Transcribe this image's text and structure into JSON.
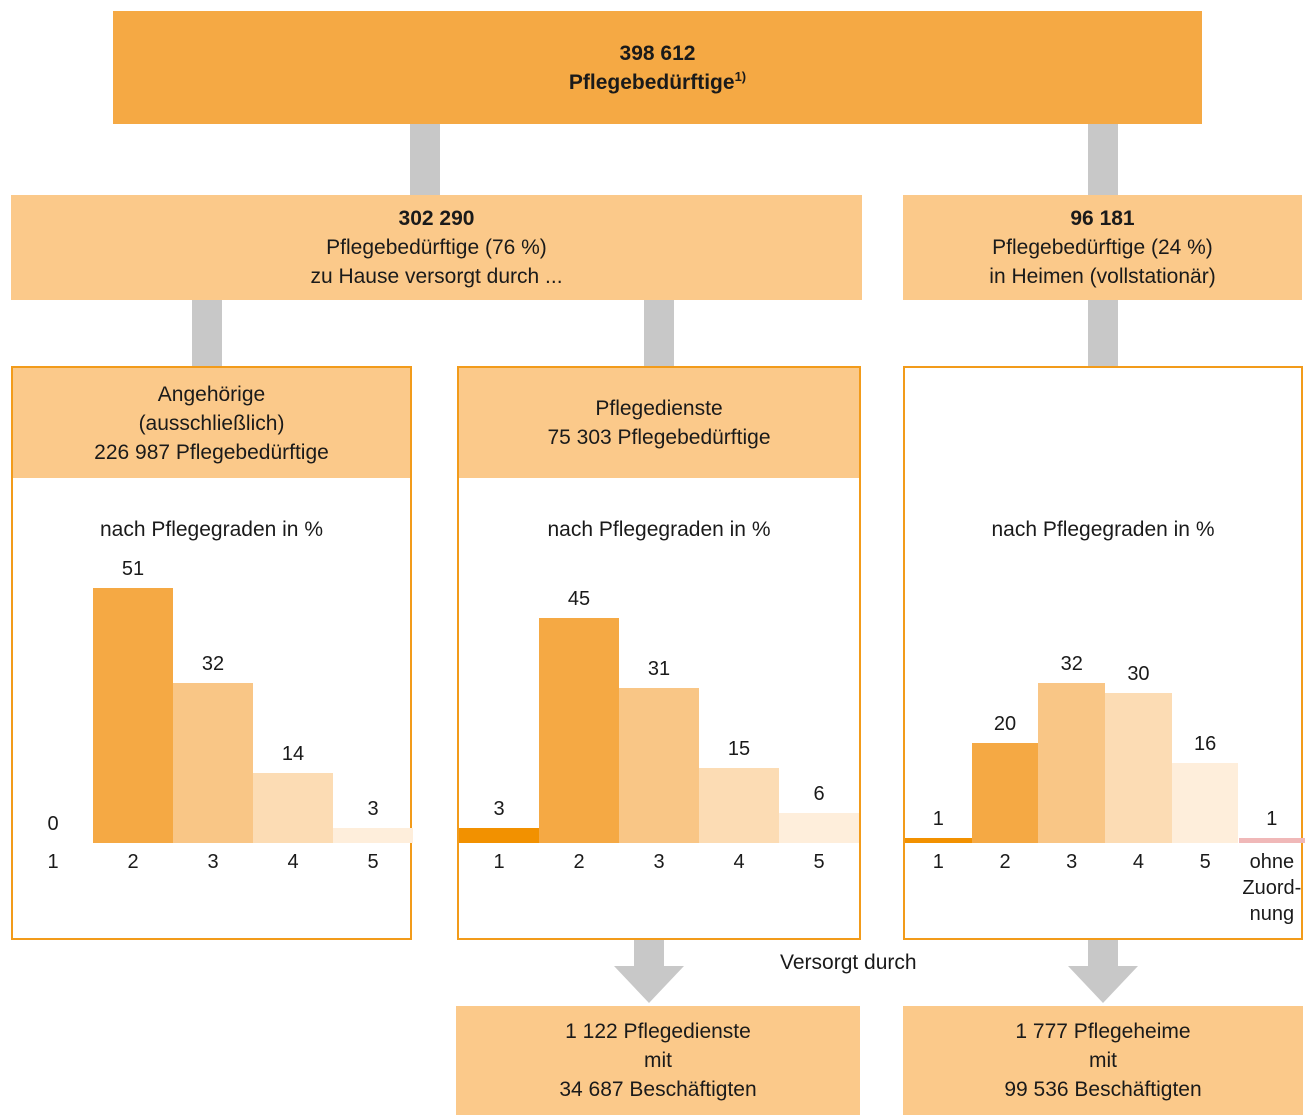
{
  "top": {
    "value": "398 612",
    "label": "Pflegebedürftige",
    "footnote": "1)"
  },
  "home": {
    "value": "302 290",
    "line1": "Pflegebedürftige (76 %)",
    "line2": "zu Hause versorgt durch ..."
  },
  "inpatient": {
    "value": "96 181",
    "line1": "Pflegebedürftige (24 %)",
    "line2": "in Heimen (vollstationär)"
  },
  "panels": [
    {
      "head": [
        "Angehörige",
        "(ausschließlich)",
        "226 987 Pflegebedürftige"
      ],
      "subtitle": "nach Pflegegraden in %"
    },
    {
      "head": [
        "Pflegedienste",
        "75 303 Pflegebedürftige"
      ],
      "subtitle": "nach Pflegegraden in %"
    },
    {
      "head": [],
      "subtitle": "nach Pflegegraden in %"
    }
  ],
  "chart_data": [
    {
      "type": "bar",
      "categories": [
        "1",
        "2",
        "3",
        "4",
        "5"
      ],
      "values": [
        0,
        51,
        32,
        14,
        3
      ],
      "ylim": [
        0,
        51
      ]
    },
    {
      "type": "bar",
      "categories": [
        "1",
        "2",
        "3",
        "4",
        "5"
      ],
      "values": [
        3,
        45,
        31,
        15,
        6
      ],
      "ylim": [
        0,
        51
      ]
    },
    {
      "type": "bar",
      "categories": [
        "1",
        "2",
        "3",
        "4",
        "5",
        "ohne Zuord-nung"
      ],
      "values": [
        1,
        20,
        32,
        30,
        16,
        1
      ],
      "ylim": [
        0,
        51
      ]
    }
  ],
  "colors": {
    "grade1": "#f29100",
    "grade2": "#f5a944",
    "grade3": "#f9c686",
    "grade4": "#fcdcb4",
    "grade5": "#feeedb",
    "ohne": "#f0b8b8",
    "connector": "#c8c8c8",
    "border": "#f29b1a"
  },
  "versorgt": "Versorgt durch",
  "services": [
    "1 122 Pflegedienste",
    "mit",
    "34 687 Beschäftigten"
  ],
  "homes": [
    "1 777 Pflegeheime",
    "mit",
    "99 536 Beschäftigten"
  ]
}
